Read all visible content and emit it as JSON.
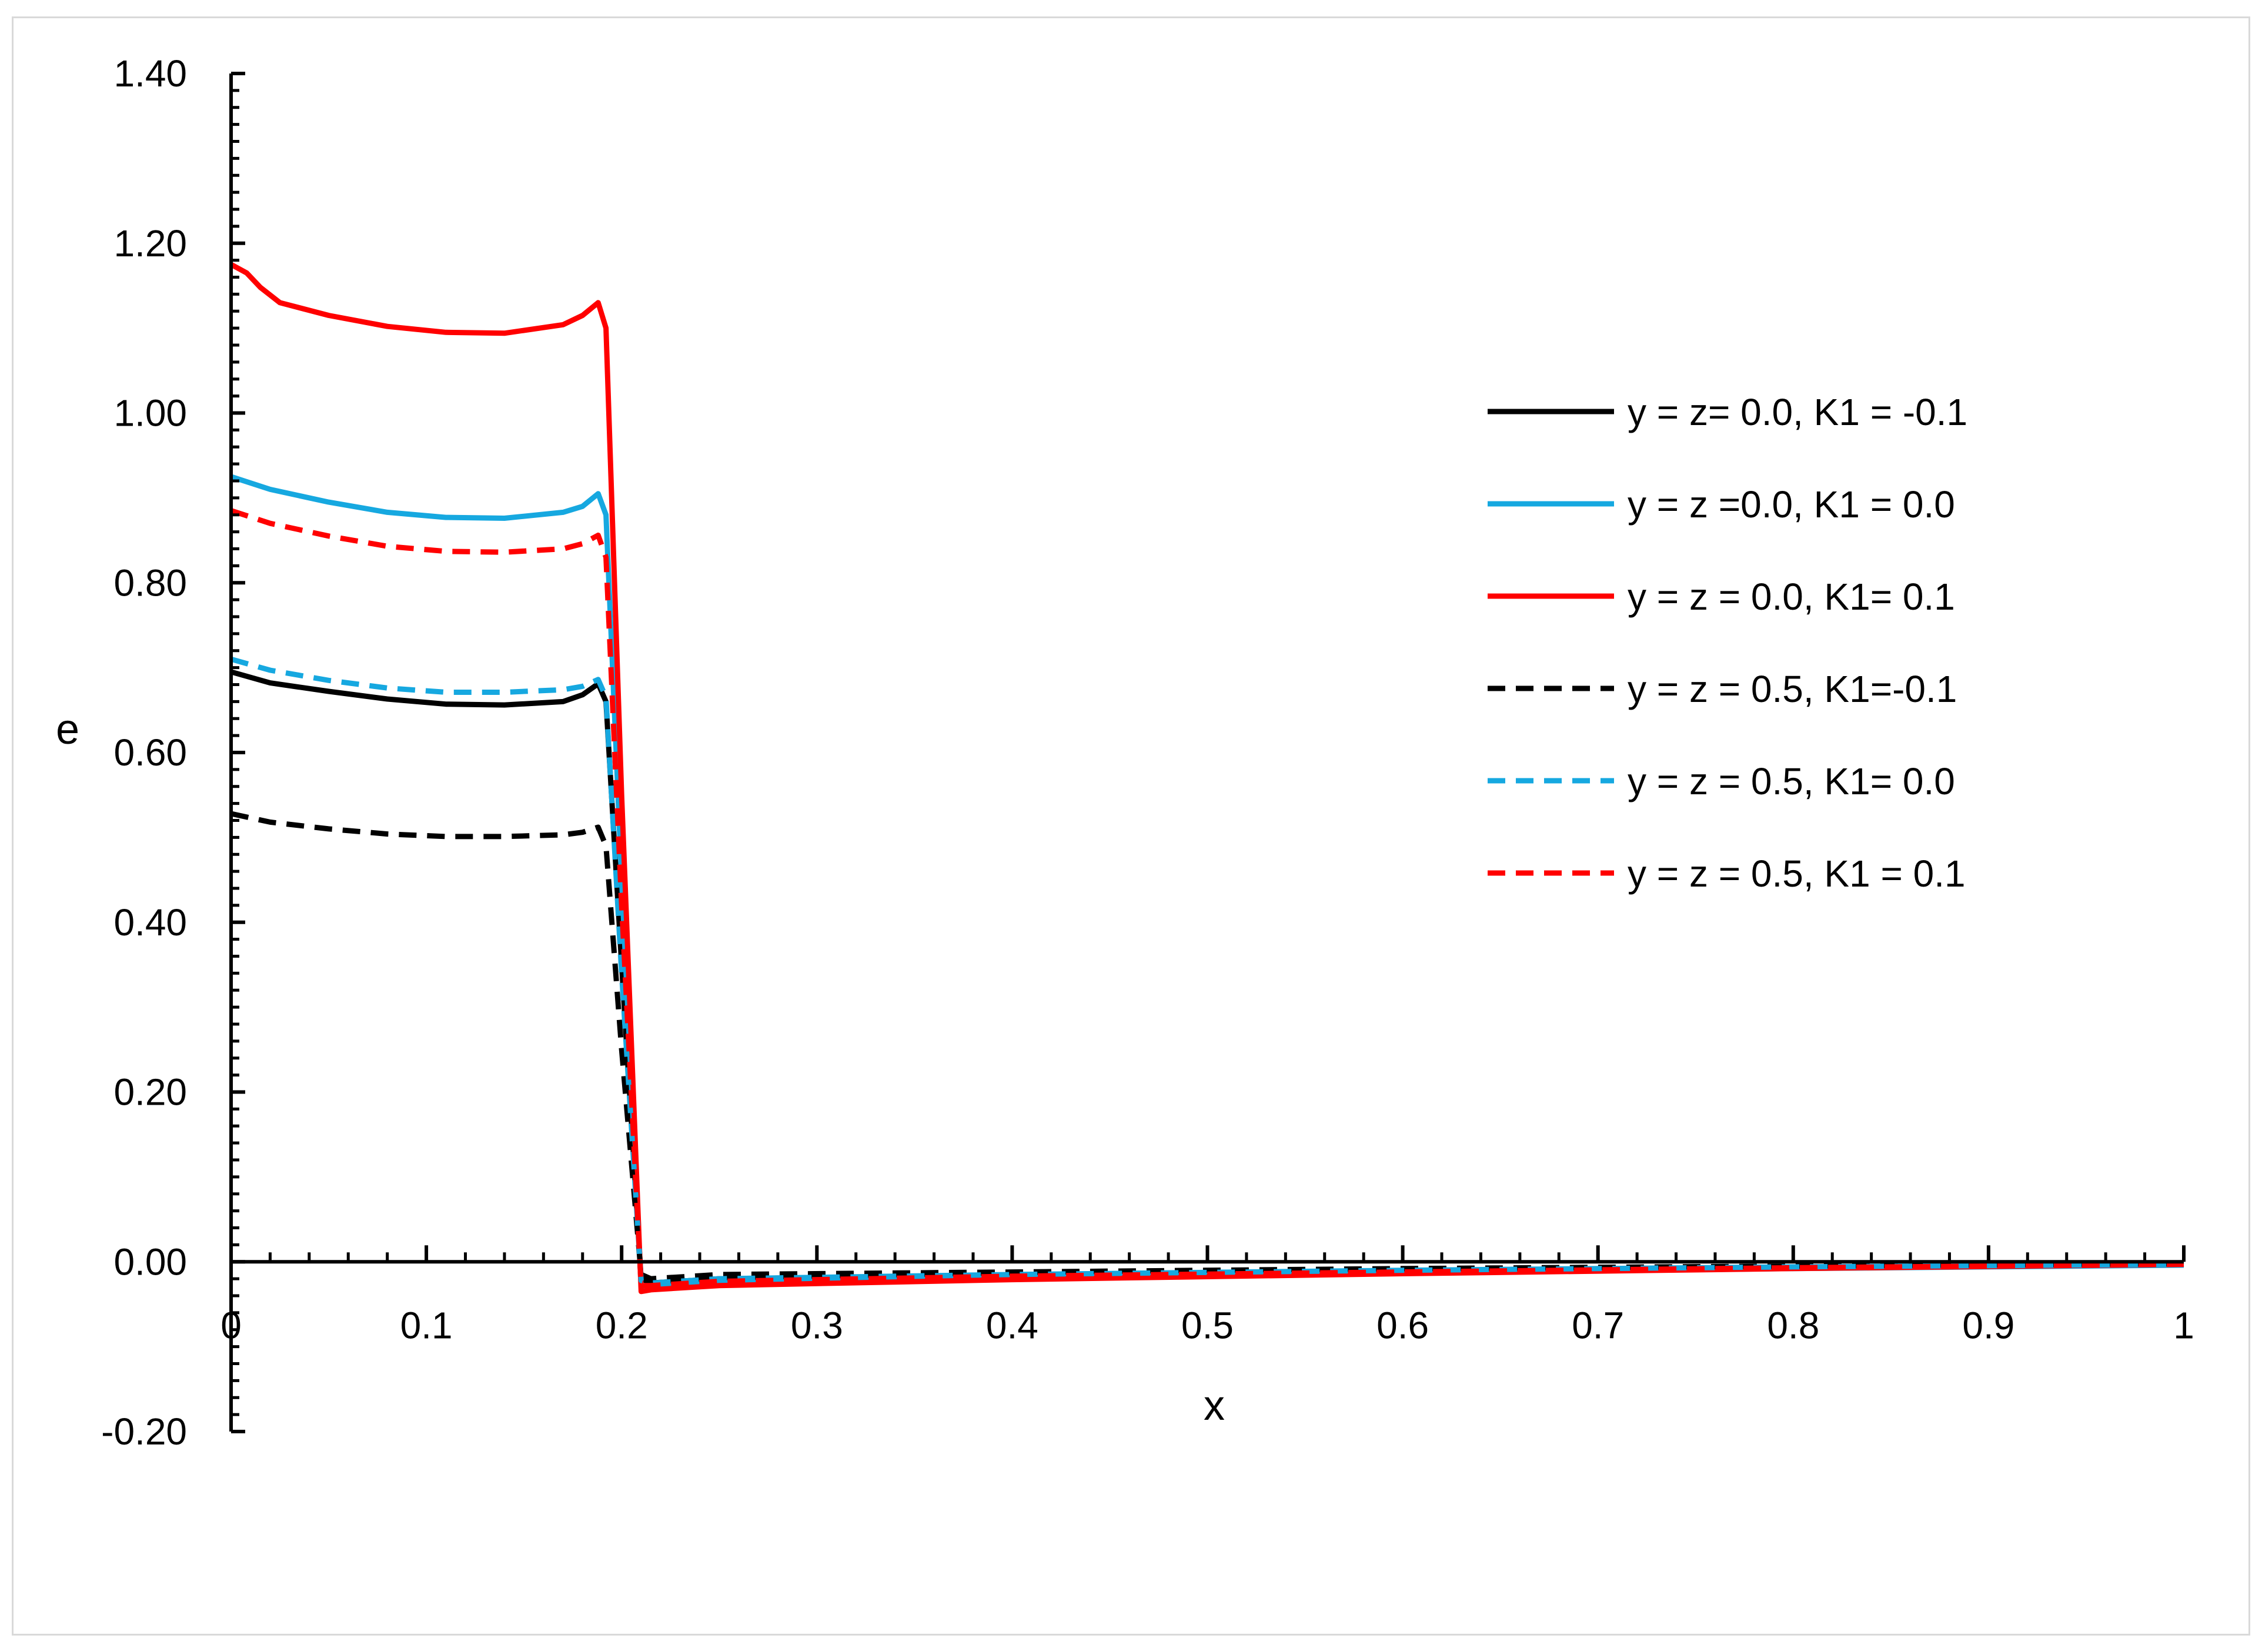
{
  "chart_data": {
    "type": "line",
    "title": "",
    "xlabel": "x",
    "ylabel": "e",
    "xlim": [
      0,
      1
    ],
    "ylim": [
      -0.2,
      1.4
    ],
    "x_ticks": [
      "0",
      "0.1",
      "0.2",
      "0.3",
      "0.4",
      "0.5",
      "0.6",
      "0.7",
      "0.8",
      "0.9",
      "1"
    ],
    "x_tick_values": [
      0,
      0.1,
      0.2,
      0.3,
      0.4,
      0.5,
      0.6,
      0.7,
      0.8,
      0.9,
      1
    ],
    "y_ticks": [
      "1.40",
      "1.20",
      "1.00",
      "0.80",
      "0.60",
      "0.40",
      "0.20",
      "0.00",
      "-0.20"
    ],
    "y_tick_values": [
      1.4,
      1.2,
      1.0,
      0.8,
      0.6,
      0.4,
      0.2,
      0.0,
      -0.2
    ],
    "grid": false,
    "legend_position": "right",
    "series": [
      {
        "name": "y = z= 0.0, K1 = -0.1",
        "color": "#000000",
        "dash": "solid",
        "x": [
          0,
          0.02,
          0.05,
          0.08,
          0.11,
          0.14,
          0.17,
          0.18,
          0.188,
          0.192,
          0.2,
          0.21,
          0.215,
          0.25,
          0.4,
          0.6,
          0.8,
          1.0
        ],
        "y": [
          0.695,
          0.682,
          0.672,
          0.663,
          0.657,
          0.656,
          0.66,
          0.668,
          0.681,
          0.66,
          0.35,
          -0.02,
          -0.025,
          -0.02,
          -0.016,
          -0.011,
          -0.007,
          -0.003
        ]
      },
      {
        "name": "y = z =0.0, K1 = 0.0",
        "color": "#16a8e0",
        "dash": "solid",
        "x": [
          0,
          0.02,
          0.05,
          0.08,
          0.11,
          0.14,
          0.17,
          0.18,
          0.188,
          0.192,
          0.2,
          0.21,
          0.215,
          0.25,
          0.4,
          0.6,
          0.8,
          1.0
        ],
        "y": [
          0.925,
          0.91,
          0.895,
          0.883,
          0.877,
          0.876,
          0.883,
          0.89,
          0.905,
          0.88,
          0.45,
          -0.03,
          -0.03,
          -0.025,
          -0.019,
          -0.013,
          -0.008,
          -0.004
        ]
      },
      {
        "name": "y = z = 0.0, K1= 0.1",
        "color": "#ff0000",
        "dash": "solid",
        "x": [
          0,
          0.008,
          0.015,
          0.025,
          0.05,
          0.08,
          0.11,
          0.14,
          0.17,
          0.18,
          0.188,
          0.192,
          0.2,
          0.21,
          0.215,
          0.25,
          0.4,
          0.6,
          0.8,
          1.0
        ],
        "y": [
          1.175,
          1.165,
          1.148,
          1.13,
          1.115,
          1.102,
          1.095,
          1.094,
          1.104,
          1.115,
          1.13,
          1.1,
          0.55,
          -0.035,
          -0.033,
          -0.028,
          -0.021,
          -0.014,
          -0.008,
          -0.003
        ]
      },
      {
        "name": "y = z = 0.5, K1=-0.1",
        "color": "#000000",
        "dash": "dashed",
        "x": [
          0,
          0.02,
          0.05,
          0.08,
          0.11,
          0.14,
          0.17,
          0.18,
          0.188,
          0.192,
          0.2,
          0.21,
          0.215,
          0.25,
          0.4,
          0.6,
          0.8,
          1.0
        ],
        "y": [
          0.528,
          0.518,
          0.51,
          0.504,
          0.501,
          0.501,
          0.503,
          0.506,
          0.512,
          0.49,
          0.25,
          -0.015,
          -0.02,
          -0.015,
          -0.012,
          -0.008,
          -0.005,
          -0.002
        ]
      },
      {
        "name": "y = z = 0.5, K1= 0.0",
        "color": "#16a8e0",
        "dash": "dashed",
        "x": [
          0,
          0.02,
          0.05,
          0.08,
          0.11,
          0.14,
          0.17,
          0.18,
          0.188,
          0.192,
          0.2,
          0.21,
          0.215,
          0.25,
          0.4,
          0.6,
          0.8,
          1.0
        ],
        "y": [
          0.71,
          0.697,
          0.685,
          0.676,
          0.671,
          0.671,
          0.674,
          0.678,
          0.686,
          0.665,
          0.34,
          -0.022,
          -0.025,
          -0.02,
          -0.015,
          -0.01,
          -0.006,
          -0.003
        ]
      },
      {
        "name": "y = z = 0.5, K1 = 0.1",
        "color": "#ff0000",
        "dash": "dashed",
        "x": [
          0,
          0.02,
          0.05,
          0.08,
          0.11,
          0.14,
          0.17,
          0.18,
          0.188,
          0.192,
          0.2,
          0.21,
          0.215,
          0.25,
          0.4,
          0.6,
          0.8,
          1.0
        ],
        "y": [
          0.885,
          0.87,
          0.855,
          0.843,
          0.837,
          0.836,
          0.84,
          0.846,
          0.856,
          0.83,
          0.42,
          -0.028,
          -0.028,
          -0.023,
          -0.017,
          -0.012,
          -0.007,
          -0.003
        ]
      }
    ]
  }
}
